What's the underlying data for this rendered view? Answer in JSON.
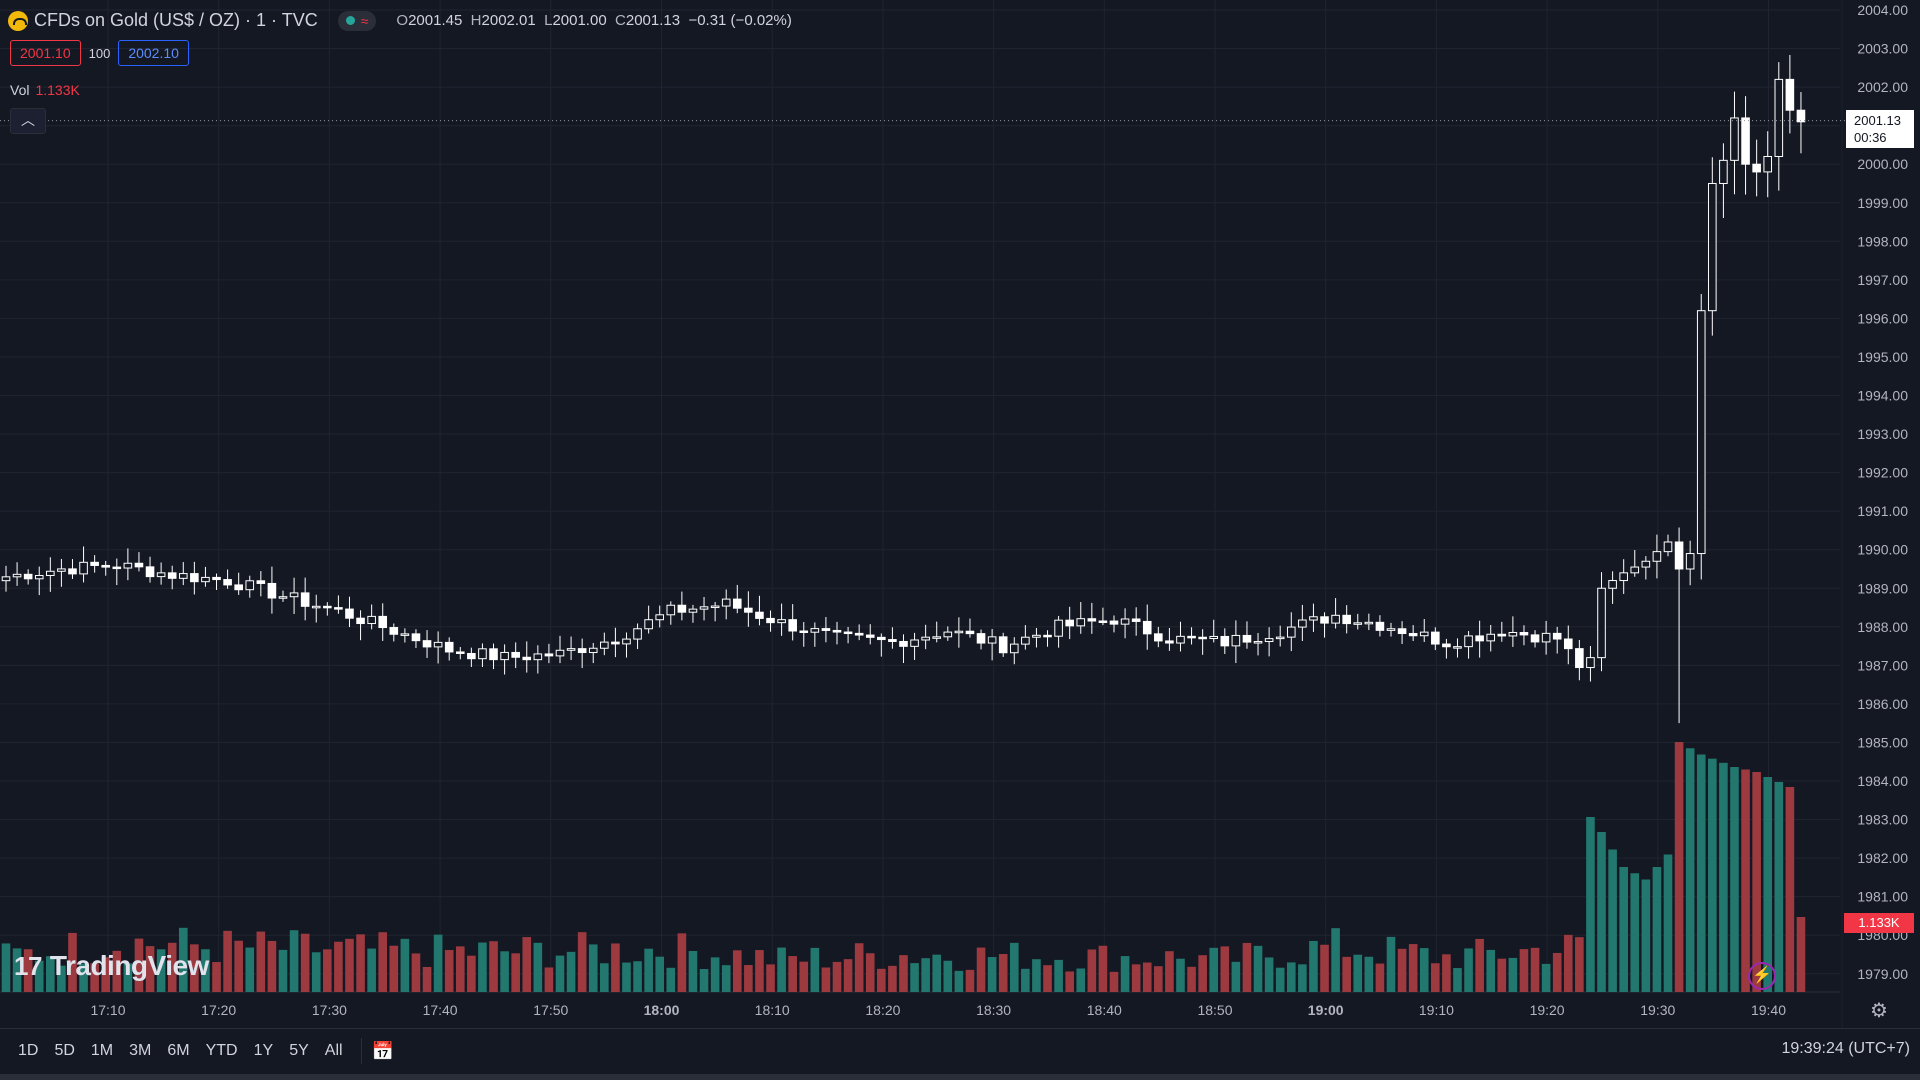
{
  "header": {
    "title": "CFDs on Gold (US$ / OZ) · 1 · TVC",
    "open_label": "O",
    "open": "2001.45",
    "high_label": "H",
    "high": "2002.01",
    "low_label": "L",
    "low": "2001.00",
    "close_label": "C",
    "close": "2001.13",
    "change": "−0.31 (−0.02%)"
  },
  "trade": {
    "sell": "2001.10",
    "spread": "100",
    "buy": "2002.10"
  },
  "volume": {
    "label": "Vol",
    "value": "1.133K"
  },
  "price_tag": {
    "price": "2001.13",
    "countdown": "00:36"
  },
  "volume_tag": "1.133K",
  "watermark": "TradingView",
  "bottom": {
    "timeframes": [
      "1D",
      "5D",
      "1M",
      "3M",
      "6M",
      "YTD",
      "1Y",
      "5Y",
      "All"
    ],
    "clock": "19:39:24 (UTC+7)"
  },
  "colors": {
    "up": "#ffffff",
    "down": "#ffffff",
    "vol_up": "#22786f",
    "vol_down": "#9c3a40",
    "bg": "#141823",
    "grid": "#1f2430"
  },
  "icons": [
    "collapse-chevron-icon",
    "calendar-range-icon",
    "settings-gear-icon",
    "lightning-icon",
    "gold-coin-icon"
  ],
  "chart_data": {
    "type": "candlestick",
    "symbol": "CFDs on Gold (US$ / OZ)",
    "interval": "1",
    "y_ticks": [
      2004,
      2003,
      2002,
      2001,
      2000,
      1999,
      1998,
      1997,
      1996,
      1995,
      1994,
      1993,
      1992,
      1991,
      1990,
      1989,
      1988,
      1987,
      1986,
      1985,
      1984,
      1983,
      1982,
      1981,
      1980,
      1979
    ],
    "x_ticks": [
      {
        "label": "17:10",
        "bold": false
      },
      {
        "label": "17:20",
        "bold": false
      },
      {
        "label": "17:30",
        "bold": false
      },
      {
        "label": "17:40",
        "bold": false
      },
      {
        "label": "17:50",
        "bold": false
      },
      {
        "label": "18:00",
        "bold": true
      },
      {
        "label": "18:10",
        "bold": false
      },
      {
        "label": "18:20",
        "bold": false
      },
      {
        "label": "18:30",
        "bold": false
      },
      {
        "label": "18:40",
        "bold": false
      },
      {
        "label": "18:50",
        "bold": false
      },
      {
        "label": "19:00",
        "bold": true
      },
      {
        "label": "19:10",
        "bold": false
      },
      {
        "label": "19:20",
        "bold": false
      },
      {
        "label": "19:30",
        "bold": false
      },
      {
        "label": "19:40",
        "bold": false
      }
    ],
    "ylim": [
      1978.6,
      2004
    ],
    "last_price": 2001.13,
    "close_path": [
      [
        0,
        1989.3
      ],
      [
        5,
        1989.5
      ],
      [
        10,
        1989.6
      ],
      [
        15,
        1989.35
      ],
      [
        20,
        1989.2
      ],
      [
        25,
        1988.8
      ],
      [
        30,
        1988.4
      ],
      [
        35,
        1987.9
      ],
      [
        40,
        1987.4
      ],
      [
        45,
        1987.2
      ],
      [
        50,
        1987.3
      ],
      [
        55,
        1987.7
      ],
      [
        60,
        1988.4
      ],
      [
        65,
        1988.6
      ],
      [
        70,
        1988.1
      ],
      [
        75,
        1987.7
      ],
      [
        80,
        1987.6
      ],
      [
        85,
        1987.9
      ],
      [
        90,
        1987.5
      ],
      [
        95,
        1988.0
      ],
      [
        100,
        1988.2
      ],
      [
        105,
        1987.7
      ],
      [
        110,
        1987.6
      ],
      [
        115,
        1987.9
      ],
      [
        120,
        1988.3
      ],
      [
        125,
        1988.0
      ],
      [
        130,
        1987.6
      ],
      [
        135,
        1987.9
      ],
      [
        140,
        1987.7
      ],
      [
        142,
        1987.0
      ],
      [
        143,
        1987.2
      ],
      [
        144,
        1989.0
      ],
      [
        146,
        1989.4
      ],
      [
        148,
        1989.7
      ],
      [
        150,
        1990.2
      ],
      [
        151,
        1989.5
      ],
      [
        152,
        1989.9
      ],
      [
        153,
        1996.2
      ],
      [
        154,
        1999.5
      ],
      [
        155,
        2000.1
      ],
      [
        156,
        2001.2
      ],
      [
        157,
        2000.0
      ],
      [
        158,
        1999.8
      ],
      [
        159,
        2000.2
      ],
      [
        160,
        2002.2
      ],
      [
        161,
        2001.4
      ],
      [
        162,
        2001.1
      ]
    ],
    "spike": {
      "index": 151,
      "low": 1985.5
    },
    "volume_profile": [
      [
        0,
        14
      ],
      [
        10,
        20
      ],
      [
        20,
        18
      ],
      [
        40,
        16
      ],
      [
        60,
        17
      ],
      [
        70,
        13
      ],
      [
        80,
        15
      ],
      [
        100,
        14
      ],
      [
        110,
        13
      ],
      [
        120,
        18
      ],
      [
        130,
        14
      ],
      [
        142,
        18
      ],
      [
        143,
        70
      ],
      [
        144,
        64
      ],
      [
        146,
        50
      ],
      [
        148,
        45
      ],
      [
        150,
        55
      ],
      [
        151,
        100
      ],
      [
        153,
        95
      ],
      [
        156,
        90
      ],
      [
        158,
        88
      ],
      [
        161,
        82
      ],
      [
        162,
        30
      ]
    ],
    "volume_unit_max": "≈1.9K"
  }
}
